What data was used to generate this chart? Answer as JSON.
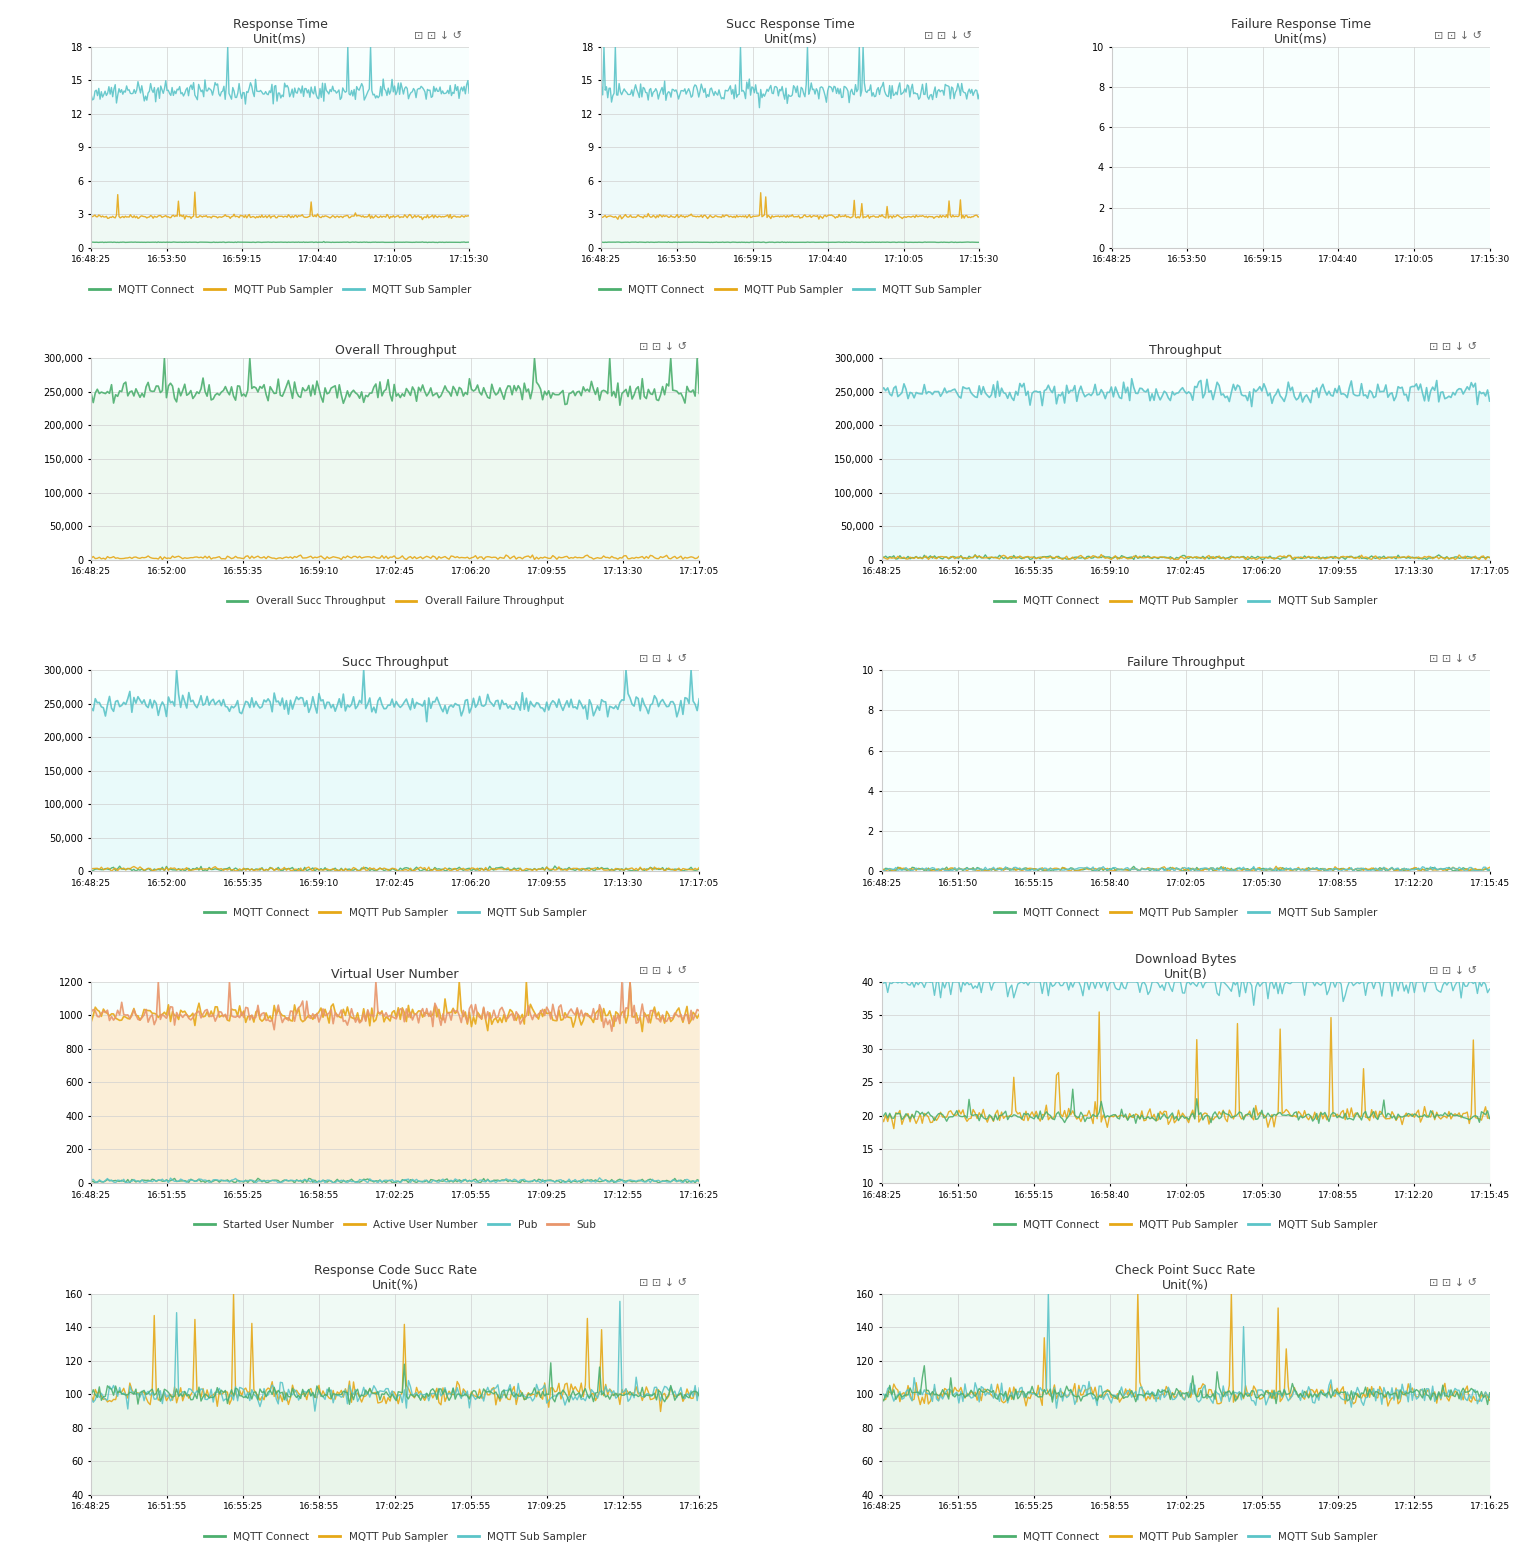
{
  "background_color": "#ffffff",
  "panel_bg": "#ffffff",
  "grid_color": "#e0e0e0",
  "plots": [
    {
      "title": "Response Time",
      "subtitle": "Unit(ms)",
      "row": 0,
      "col": 0,
      "ylim": [
        0,
        18
      ],
      "yticks": [
        0,
        3,
        6,
        9,
        12,
        15,
        18
      ],
      "xticks": [
        "16:48:25",
        "16:53:50",
        "16:59:15",
        "17:04:40",
        "17:10:05",
        "17:15:30"
      ],
      "series": [
        {
          "label": "MQTT Connect",
          "color": "#4caf6e",
          "value": 0.5,
          "fill": false,
          "linewidth": 1.0
        },
        {
          "label": "MQTT Pub Sampler",
          "color": "#e6a817",
          "value": 2.8,
          "fill": true,
          "fill_color": "#fef9e7",
          "linewidth": 1.0
        },
        {
          "label": "MQTT Sub Sampler",
          "color": "#5bc4c8",
          "value": 14.0,
          "fill": true,
          "fill_color": "#e8f8f8",
          "linewidth": 1.0
        }
      ]
    },
    {
      "title": "Succ Response Time",
      "subtitle": "Unit(ms)",
      "row": 0,
      "col": 1,
      "ylim": [
        0,
        18
      ],
      "yticks": [
        0,
        3,
        6,
        9,
        12,
        15,
        18
      ],
      "xticks": [
        "16:48:25",
        "16:53:50",
        "16:59:15",
        "17:04:40",
        "17:10:05",
        "17:15:30"
      ],
      "series": [
        {
          "label": "MQTT Connect",
          "color": "#4caf6e",
          "value": 0.5,
          "fill": false,
          "linewidth": 1.0
        },
        {
          "label": "MQTT Pub Sampler",
          "color": "#e6a817",
          "value": 2.8,
          "fill": true,
          "fill_color": "#fef9e7",
          "linewidth": 1.0
        },
        {
          "label": "MQTT Sub Sampler",
          "color": "#5bc4c8",
          "value": 14.0,
          "fill": true,
          "fill_color": "#e8f8f8",
          "linewidth": 1.0
        }
      ]
    },
    {
      "title": "Failure Response Time",
      "subtitle": "Unit(ms)",
      "row": 0,
      "col": 2,
      "ylim": [
        0,
        10
      ],
      "yticks": [
        0,
        2,
        4,
        6,
        8,
        10
      ],
      "xticks": [
        "16:48:25",
        "16:53:50",
        "16:59:15",
        "17:04:40",
        "17:10:05",
        "17:15:30"
      ],
      "series": []
    },
    {
      "title": "Overall Throughput",
      "subtitle": "",
      "row": 1,
      "col": 0,
      "ylim": [
        0,
        300000
      ],
      "yticks": [
        0,
        50000,
        100000,
        150000,
        200000,
        250000,
        300000
      ],
      "ytick_labels": [
        "0",
        "50,000",
        "100,000",
        "150,000",
        "200,000",
        "250,000",
        "300,000"
      ],
      "xticks": [
        "16:48:25",
        "16:52:00",
        "16:55:35",
        "16:59:10",
        "17:02:45",
        "17:06:20",
        "17:09:55",
        "17:13:30",
        "17:17:05"
      ],
      "series": [
        {
          "label": "Overall Succ Throughput",
          "color": "#4caf6e",
          "value": 250000,
          "fill": true,
          "fill_color": "#e8f5e9",
          "linewidth": 1.2
        },
        {
          "label": "Overall Failure Throughput",
          "color": "#e6a817",
          "value": 0,
          "fill": false,
          "linewidth": 1.0
        }
      ]
    },
    {
      "title": "Throughput",
      "subtitle": "",
      "row": 1,
      "col": 1,
      "ylim": [
        0,
        300000
      ],
      "yticks": [
        0,
        50000,
        100000,
        150000,
        200000,
        250000,
        300000
      ],
      "ytick_labels": [
        "0",
        "50,000",
        "100,000",
        "150,000",
        "200,000",
        "250,000",
        "300,000"
      ],
      "xticks": [
        "16:48:25",
        "16:52:00",
        "16:55:35",
        "16:59:10",
        "17:02:45",
        "17:06:20",
        "17:09:55",
        "17:13:30",
        "17:17:05"
      ],
      "series": [
        {
          "label": "MQTT Connect",
          "color": "#4caf6e",
          "value": 0,
          "fill": false,
          "linewidth": 1.0
        },
        {
          "label": "MQTT Pub Sampler",
          "color": "#e6a817",
          "value": 0,
          "fill": false,
          "linewidth": 1.0
        },
        {
          "label": "MQTT Sub Sampler",
          "color": "#5bc4c8",
          "value": 250000,
          "fill": true,
          "fill_color": "#e0f7f8",
          "linewidth": 1.2
        }
      ]
    },
    {
      "title": "Succ Throughput",
      "subtitle": "",
      "row": 2,
      "col": 0,
      "ylim": [
        0,
        300000
      ],
      "yticks": [
        0,
        50000,
        100000,
        150000,
        200000,
        250000,
        300000
      ],
      "ytick_labels": [
        "0",
        "50,000",
        "100,000",
        "150,000",
        "200,000",
        "250,000",
        "300,000"
      ],
      "xticks": [
        "16:48:25",
        "16:52:00",
        "16:55:35",
        "16:59:10",
        "17:02:45",
        "17:06:20",
        "17:09:55",
        "17:13:30",
        "17:17:05"
      ],
      "series": [
        {
          "label": "MQTT Connect",
          "color": "#4caf6e",
          "value": 0,
          "fill": false,
          "linewidth": 1.0
        },
        {
          "label": "MQTT Pub Sampler",
          "color": "#e6a817",
          "value": 0,
          "fill": false,
          "linewidth": 1.0
        },
        {
          "label": "MQTT Sub Sampler",
          "color": "#5bc4c8",
          "value": 250000,
          "fill": true,
          "fill_color": "#e0f7f8",
          "linewidth": 1.2
        }
      ]
    },
    {
      "title": "Failure Throughput",
      "subtitle": "",
      "row": 2,
      "col": 1,
      "ylim": [
        0,
        10
      ],
      "yticks": [
        0,
        2,
        4,
        6,
        8,
        10
      ],
      "xticks": [
        "16:48:25",
        "16:51:50",
        "16:55:15",
        "16:58:40",
        "17:02:05",
        "17:05:30",
        "17:08:55",
        "17:12:20",
        "17:15:45"
      ],
      "series": [
        {
          "label": "MQTT Connect",
          "color": "#4caf6e",
          "value": 0,
          "fill": false,
          "linewidth": 1.0
        },
        {
          "label": "MQTT Pub Sampler",
          "color": "#e6a817",
          "value": 0,
          "fill": false,
          "linewidth": 1.0
        },
        {
          "label": "MQTT Sub Sampler",
          "color": "#5bc4c8",
          "value": 0,
          "fill": false,
          "linewidth": 1.0
        }
      ]
    },
    {
      "title": "Virtual User Number",
      "subtitle": "",
      "row": 3,
      "col": 0,
      "ylim": [
        0,
        1200
      ],
      "yticks": [
        0,
        200,
        400,
        600,
        800,
        1000,
        1200
      ],
      "xticks": [
        "16:48:25",
        "16:51:55",
        "16:55:25",
        "16:58:55",
        "17:02:25",
        "17:05:55",
        "17:09:25",
        "17:12:55",
        "17:16:25"
      ],
      "series": [
        {
          "label": "Started User Number",
          "color": "#4caf6e",
          "value": 0,
          "fill": false,
          "linewidth": 1.0
        },
        {
          "label": "Active User Number",
          "color": "#e6a817",
          "value": 1000,
          "fill": true,
          "fill_color": "#fdebd0",
          "linewidth": 1.2
        },
        {
          "label": "Pub",
          "color": "#5bc4c8",
          "value": 0,
          "fill": false,
          "linewidth": 1.0
        },
        {
          "label": "Sub",
          "color": "#e8956b",
          "value": 1000,
          "fill": true,
          "fill_color": "#fdebd0",
          "linewidth": 1.2
        }
      ]
    },
    {
      "title": "Download Bytes",
      "subtitle": "Unit(B)",
      "row": 3,
      "col": 1,
      "ylim": [
        10,
        40
      ],
      "yticks": [
        10,
        15,
        20,
        25,
        30,
        35,
        40
      ],
      "xticks": [
        "16:48:25",
        "16:51:50",
        "16:55:15",
        "16:58:40",
        "17:02:05",
        "17:05:30",
        "17:08:55",
        "17:12:20",
        "17:15:45"
      ],
      "series": [
        {
          "label": "MQTT Connect",
          "color": "#4caf6e",
          "value": 20,
          "fill": false,
          "linewidth": 1.0
        },
        {
          "label": "MQTT Pub Sampler",
          "color": "#e6a817",
          "value": 20,
          "fill": true,
          "fill_color": "#fef9e7",
          "linewidth": 1.0
        },
        {
          "label": "MQTT Sub Sampler",
          "color": "#5bc4c8",
          "value": 40,
          "fill": true,
          "fill_color": "#e8f8f8",
          "linewidth": 1.0
        }
      ]
    },
    {
      "title": "Response Code Succ Rate",
      "subtitle": "Unit(%)",
      "row": 4,
      "col": 0,
      "ylim": [
        40,
        160
      ],
      "yticks": [
        40,
        60,
        80,
        100,
        120,
        140,
        160
      ],
      "xticks": [
        "16:48:25",
        "16:51:55",
        "16:55:25",
        "16:58:55",
        "17:02:25",
        "17:05:55",
        "17:09:25",
        "17:12:55",
        "17:16:25"
      ],
      "series": [
        {
          "label": "MQTT Connect",
          "color": "#4caf6e",
          "value": 100,
          "fill": false,
          "linewidth": 1.0
        },
        {
          "label": "MQTT Pub Sampler",
          "color": "#e6a817",
          "value": 100,
          "fill": true,
          "fill_color": "#e8f5e9",
          "linewidth": 1.0
        },
        {
          "label": "MQTT Sub Sampler",
          "color": "#5bc4c8",
          "value": 100,
          "fill": true,
          "fill_color": "#e8f5e9",
          "linewidth": 1.0
        }
      ]
    },
    {
      "title": "Check Point Succ Rate",
      "subtitle": "Unit(%)",
      "row": 4,
      "col": 1,
      "ylim": [
        40,
        160
      ],
      "yticks": [
        40,
        60,
        80,
        100,
        120,
        140,
        160
      ],
      "xticks": [
        "16:48:25",
        "16:51:55",
        "16:55:25",
        "16:58:55",
        "17:02:25",
        "17:05:55",
        "17:09:25",
        "17:12:55",
        "17:16:25"
      ],
      "series": [
        {
          "label": "MQTT Connect",
          "color": "#4caf6e",
          "value": 100,
          "fill": false,
          "linewidth": 1.0
        },
        {
          "label": "MQTT Pub Sampler",
          "color": "#e6a817",
          "value": 100,
          "fill": true,
          "fill_color": "#e8f5e9",
          "linewidth": 1.0
        },
        {
          "label": "MQTT Sub Sampler",
          "color": "#5bc4c8",
          "value": 100,
          "fill": true,
          "fill_color": "#e8f5e9",
          "linewidth": 1.0
        }
      ]
    }
  ],
  "legend_colors": {
    "MQTT Connect": "#4caf6e",
    "MQTT Pub Sampler": "#e6a817",
    "MQTT Sub Sampler": "#5bc4c8",
    "Overall Succ Throughput": "#4caf6e",
    "Overall Failure Throughput": "#e6a817",
    "Started User Number": "#4caf6e",
    "Active User Number": "#e6a817",
    "Pub": "#5bc4c8",
    "Sub": "#e8956b"
  }
}
